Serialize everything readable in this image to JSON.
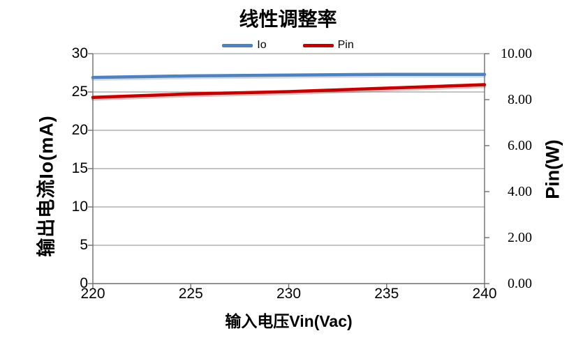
{
  "chart_data": {
    "type": "line",
    "title": "线性调整率",
    "xlabel": "输入电压Vin(Vac)",
    "ylabel_left": "输出电流Io(mA)",
    "ylabel_right": "Pin(W)",
    "x": [
      220,
      225,
      230,
      235,
      240
    ],
    "x_ticks": [
      "220",
      "225",
      "230",
      "235",
      "240"
    ],
    "xlim": [
      220,
      240
    ],
    "ylim_left": [
      0,
      30
    ],
    "y_left_ticks": [
      "0",
      "5",
      "10",
      "15",
      "20",
      "25",
      "30"
    ],
    "ylim_right": [
      0,
      10
    ],
    "y_right_ticks": [
      "0.00",
      "2.00",
      "4.00",
      "6.00",
      "8.00",
      "10.00"
    ],
    "grid": true,
    "legend_position": "top-center",
    "series": [
      {
        "name": "Io",
        "axis": "left",
        "color": "#4F81BD",
        "values": [
          26.9,
          27.1,
          27.2,
          27.3,
          27.3
        ]
      },
      {
        "name": "Pin",
        "axis": "right",
        "color": "#C00000",
        "values": [
          8.1,
          8.25,
          8.35,
          8.5,
          8.65
        ]
      }
    ]
  },
  "colors": {
    "background": "#FFFFFF",
    "axis_line": "#6E6E6E",
    "gridline": "#A0A0A0",
    "text": "#000000"
  }
}
